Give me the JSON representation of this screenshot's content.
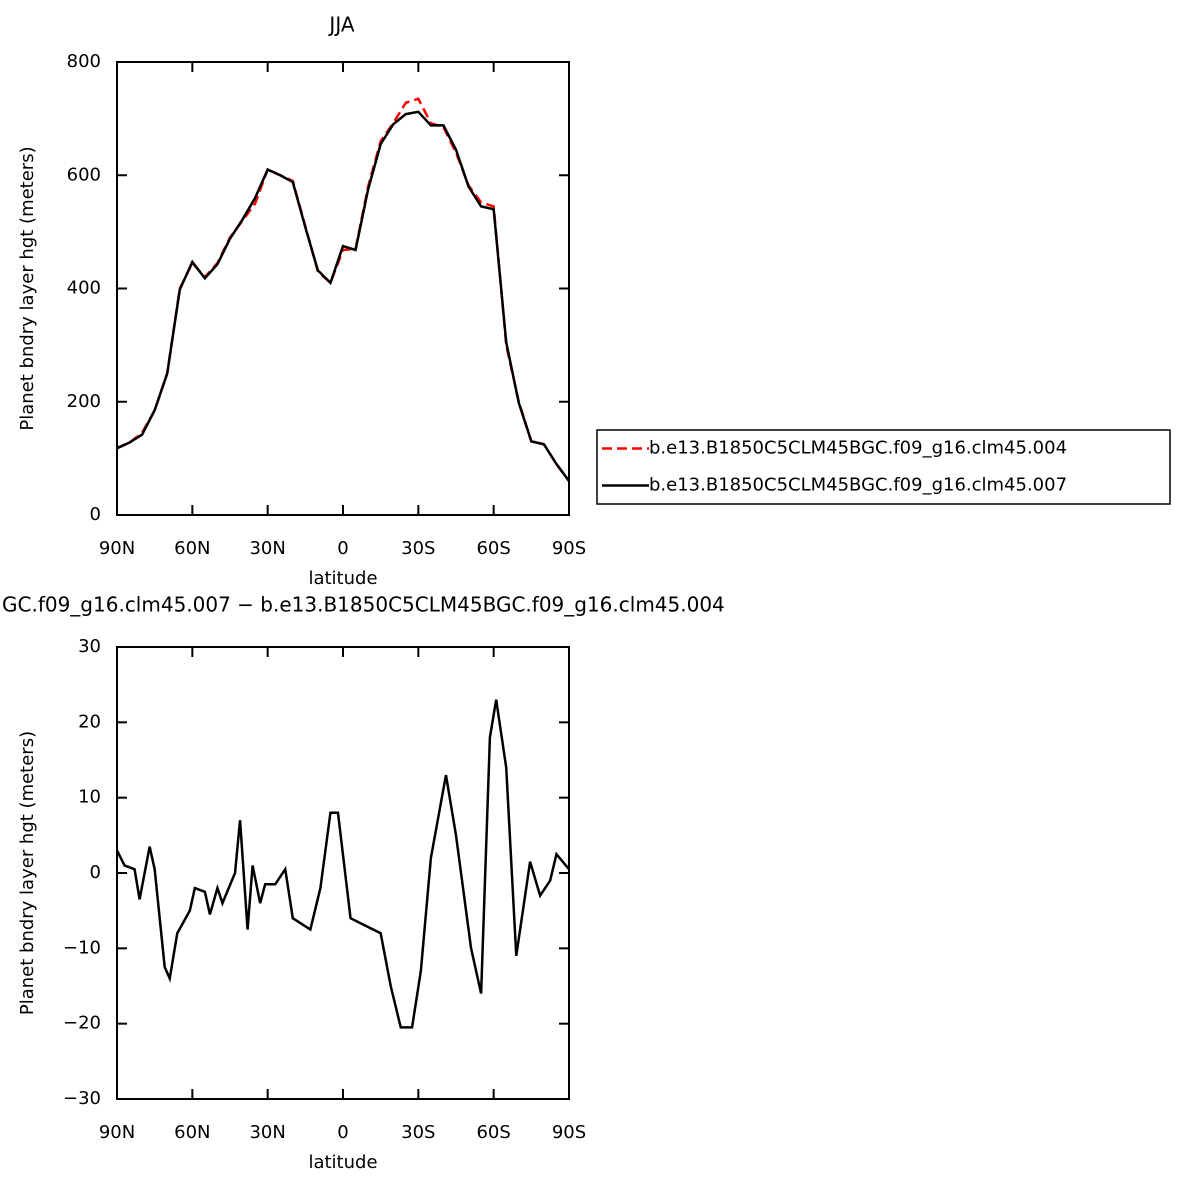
{
  "chart_data": [
    {
      "type": "line",
      "title": "JJA",
      "xlabel": "latitude",
      "ylabel": "Planet bndry layer hgt (meters)",
      "xlim": [
        90,
        -90
      ],
      "xticks": [
        {
          "value": 90,
          "label": "90N"
        },
        {
          "value": 60,
          "label": "60N"
        },
        {
          "value": 30,
          "label": "30N"
        },
        0,
        {
          "value": -30,
          "label": "30S"
        },
        {
          "value": -60,
          "label": "60S"
        },
        {
          "value": -90,
          "label": "90S"
        }
      ],
      "ylim": [
        0,
        800
      ],
      "yticks": [
        0,
        200,
        400,
        600,
        800
      ],
      "legend": "right",
      "x": [
        90,
        85,
        80,
        75,
        70,
        65,
        60,
        55,
        50,
        45,
        40,
        35,
        30,
        25,
        20,
        15,
        10,
        5,
        0,
        -5,
        -10,
        -15,
        -20,
        -25,
        -30,
        -35,
        -40,
        -45,
        -50,
        -55,
        -60,
        -65,
        -70,
        -75,
        -80,
        -85,
        -90
      ],
      "series": [
        {
          "name": "b.e13.B1850C5CLM45BGC.f09_g16.clm45.004",
          "color": "#ff0000",
          "dash": true,
          "values": [
            118,
            128,
            145,
            185,
            250,
            400,
            445,
            420,
            445,
            490,
            520,
            550,
            610,
            600,
            590,
            510,
            430,
            410,
            468,
            470,
            580,
            660,
            692,
            728,
            735,
            692,
            685,
            640,
            582,
            552,
            545,
            300,
            200,
            130,
            125,
            90,
            60
          ]
        },
        {
          "name": "b.e13.B1850C5CLM45BGC.f09_g16.clm45.007",
          "color": "#000000",
          "dash": false,
          "values": [
            118,
            128,
            142,
            185,
            250,
            398,
            447,
            418,
            443,
            488,
            522,
            560,
            610,
            600,
            588,
            508,
            432,
            410,
            475,
            468,
            575,
            655,
            690,
            708,
            712,
            688,
            688,
            645,
            580,
            545,
            540,
            305,
            198,
            130,
            125,
            90,
            60
          ]
        }
      ]
    },
    {
      "type": "line",
      "title": "GC.f09_g16.clm45.007 − b.e13.B1850C5CLM45BGC.f09_g16.clm45.004",
      "xlabel": "latitude",
      "ylabel": "Planet bndry layer hgt (meters)",
      "xlim": [
        90,
        -90
      ],
      "xticks": [
        {
          "value": 90,
          "label": "90N"
        },
        {
          "value": 60,
          "label": "60N"
        },
        {
          "value": 30,
          "label": "30N"
        },
        0,
        {
          "value": -30,
          "label": "30S"
        },
        {
          "value": -60,
          "label": "60S"
        },
        {
          "value": -90,
          "label": "90S"
        }
      ],
      "ylim": [
        -30,
        30
      ],
      "yticks": [
        {
          "value": -30,
          "label": "−30"
        },
        {
          "value": -20,
          "label": "−20"
        },
        {
          "value": -10,
          "label": "−10"
        },
        0,
        10,
        20,
        30
      ],
      "x": [
        90,
        87,
        83,
        81,
        77,
        75,
        71,
        69,
        66,
        61,
        59,
        55,
        53,
        50,
        48,
        43,
        41,
        38,
        36,
        33,
        31,
        27,
        23,
        20,
        13,
        9,
        5,
        2,
        -3,
        -9,
        -15,
        -19,
        -23,
        -27.5,
        -31,
        -35,
        -41,
        -45,
        -51,
        -55,
        -58.5,
        -61,
        -65,
        -69,
        -74.5,
        -78.5,
        -82.5,
        -85,
        -90
      ],
      "series": [
        {
          "color": "#000000",
          "dash": false,
          "values": [
            3,
            1,
            0.5,
            -3.5,
            3.5,
            0.5,
            -12.5,
            -14,
            -8,
            -5,
            -2,
            -2.5,
            -5.5,
            -2,
            -4,
            0,
            7,
            -7.5,
            1,
            -4,
            -1.5,
            -1.5,
            0.5,
            -6,
            -7.5,
            -2,
            8,
            8,
            -6,
            -7,
            -8,
            -15,
            -20.5,
            -20.5,
            -13,
            2,
            13,
            5,
            -10,
            -16,
            18,
            23,
            14,
            -11,
            1.5,
            -3,
            -1,
            2.5,
            0.5
          ]
        }
      ]
    }
  ]
}
